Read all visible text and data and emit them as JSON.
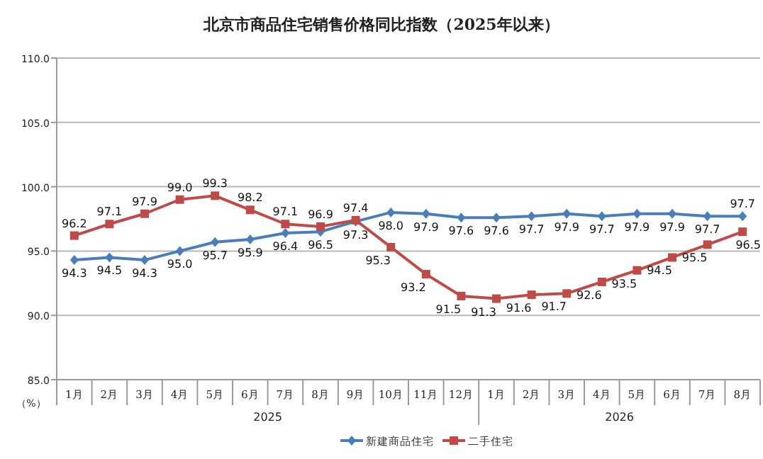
{
  "chart_data": {
    "type": "line",
    "title": "北京市商品住宅销售价格同比指数（2025年以来）",
    "ylabel": "（%）",
    "categories": [
      "1月",
      "2月",
      "3月",
      "4月",
      "5月",
      "6月",
      "7月",
      "8月",
      "9月",
      "10月",
      "11月",
      "12月",
      "1月",
      "2月",
      "3月",
      "4月",
      "5月",
      "6月",
      "7月",
      "8月"
    ],
    "annotations": [
      "2025",
      "2026"
    ],
    "series": [
      {
        "name": "新建商品住宅",
        "color": "#4a7ebb",
        "marker": "diamond",
        "values": [
          94.3,
          94.5,
          94.3,
          95.0,
          95.7,
          95.9,
          96.4,
          96.5,
          97.3,
          98.0,
          97.9,
          97.6,
          97.6,
          97.7,
          97.9,
          97.7,
          97.9,
          97.9,
          97.7,
          97.7
        ],
        "value_labels": [
          "94.3",
          "94.5",
          "94.3",
          "95.0",
          "95.7",
          "95.9",
          "96.4",
          "96.5",
          "97.3",
          "98.0",
          "97.9",
          "97.6",
          "97.6",
          "97.7",
          "97.9",
          "97.7",
          "97.9",
          "97.9",
          "97.7",
          "97.7"
        ]
      },
      {
        "name": "二手住宅",
        "color": "#be4b48",
        "marker": "square",
        "values": [
          96.2,
          97.1,
          97.9,
          99.0,
          99.3,
          98.2,
          97.1,
          96.9,
          97.4,
          95.3,
          93.2,
          91.5,
          91.3,
          91.6,
          91.7,
          92.6,
          93.5,
          94.5,
          95.5,
          96.5
        ],
        "value_labels": [
          "96.2",
          "97.1",
          "97.9",
          "99.0",
          "99.3",
          "98.2",
          "97.1",
          "96.9",
          "97.4",
          "95.3",
          "93.2",
          "91.5",
          "91.3",
          "91.6",
          "91.7",
          "92.6",
          "93.5",
          "94.5",
          "95.5",
          "96.5"
        ]
      }
    ],
    "ylim": [
      85,
      110
    ],
    "yticks": [
      {
        "value": 85,
        "label": "85.0"
      },
      {
        "value": 90,
        "label": "90.0"
      },
      {
        "value": 95,
        "label": "95.0"
      },
      {
        "value": 100,
        "label": "100.0"
      },
      {
        "value": 105,
        "label": "105.0"
      },
      {
        "value": 110,
        "label": "110.0"
      }
    ],
    "grid": "y",
    "legend": "bottom",
    "line_style": "solid"
  }
}
